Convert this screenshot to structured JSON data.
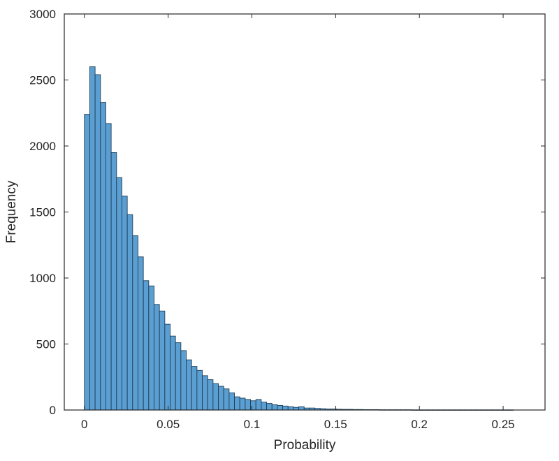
{
  "chart_data": {
    "type": "bar",
    "subtype": "histogram",
    "title": "",
    "xlabel": "Probability",
    "ylabel": "Frequency",
    "xlim": [
      -0.012,
      0.275
    ],
    "ylim": [
      0,
      3000
    ],
    "x_ticks": [
      0,
      0.05,
      0.1,
      0.15,
      0.2,
      0.25
    ],
    "x_tick_labels": [
      "0",
      "0.05",
      "0.1",
      "0.15",
      "0.2",
      "0.25"
    ],
    "y_ticks": [
      0,
      500,
      1000,
      1500,
      2000,
      2500,
      3000
    ],
    "y_tick_labels": [
      "0",
      "500",
      "1000",
      "1500",
      "2000",
      "2500",
      "3000"
    ],
    "grid": false,
    "bin_width": 0.0032,
    "bin_start": 0,
    "values": [
      2240,
      2600,
      2540,
      2330,
      2170,
      1950,
      1760,
      1620,
      1480,
      1320,
      1160,
      980,
      940,
      800,
      750,
      650,
      560,
      510,
      450,
      380,
      330,
      300,
      260,
      230,
      200,
      180,
      160,
      130,
      100,
      90,
      80,
      70,
      80,
      60,
      50,
      40,
      35,
      30,
      25,
      20,
      25,
      15,
      15,
      12,
      10,
      8,
      8,
      6,
      5,
      5,
      4,
      4,
      3,
      3,
      3,
      2,
      2,
      2,
      2,
      2,
      2,
      1,
      1,
      1,
      1,
      1,
      1,
      1,
      1,
      1,
      1,
      1,
      1,
      1,
      1,
      1,
      1,
      1,
      1,
      1
    ],
    "colors": {
      "bar_fill": "#5b9fd2",
      "bar_edge": "#1f3f5a",
      "axis": "#262626"
    }
  }
}
